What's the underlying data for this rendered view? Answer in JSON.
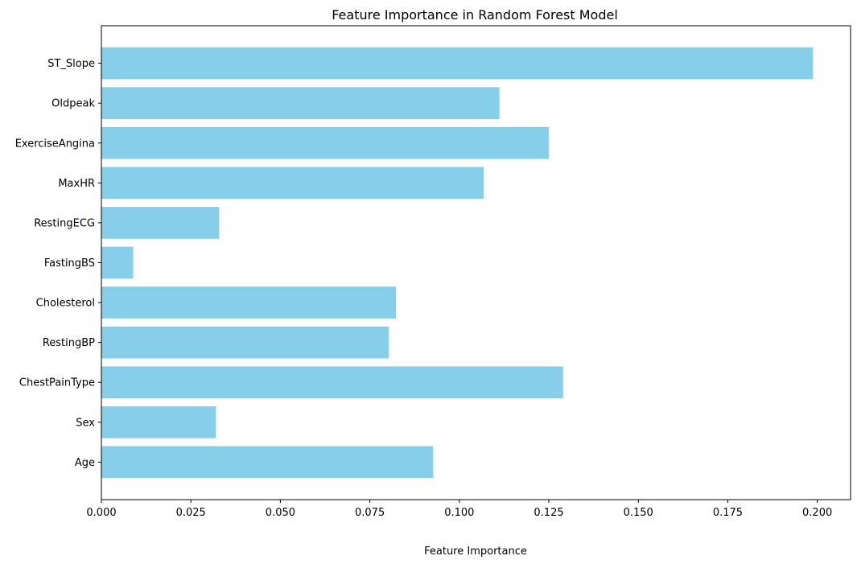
{
  "chart_data": {
    "type": "bar",
    "orientation": "horizontal",
    "title": "Feature Importance in Random Forest Model",
    "xlabel": "Feature Importance",
    "ylabel": "",
    "categories": [
      "Age",
      "Sex",
      "ChestPainType",
      "RestingBP",
      "Cholesterol",
      "FastingBS",
      "RestingECG",
      "MaxHR",
      "ExerciseAngina",
      "Oldpeak",
      "ST_Slope"
    ],
    "values": [
      0.0927,
      0.032,
      0.129,
      0.0803,
      0.0823,
      0.0089,
      0.0329,
      0.1068,
      0.125,
      0.1112,
      0.1988
    ],
    "xlim": [
      0,
      0.2093
    ],
    "xticks": [
      "0.000",
      "0.025",
      "0.050",
      "0.075",
      "0.100",
      "0.125",
      "0.150",
      "0.175",
      "0.200"
    ],
    "xtick_values": [
      0,
      0.025,
      0.05,
      0.075,
      0.1,
      0.125,
      0.15,
      0.175,
      0.2
    ],
    "bar_color": "#87CEEB",
    "grid": false,
    "legend": false
  }
}
